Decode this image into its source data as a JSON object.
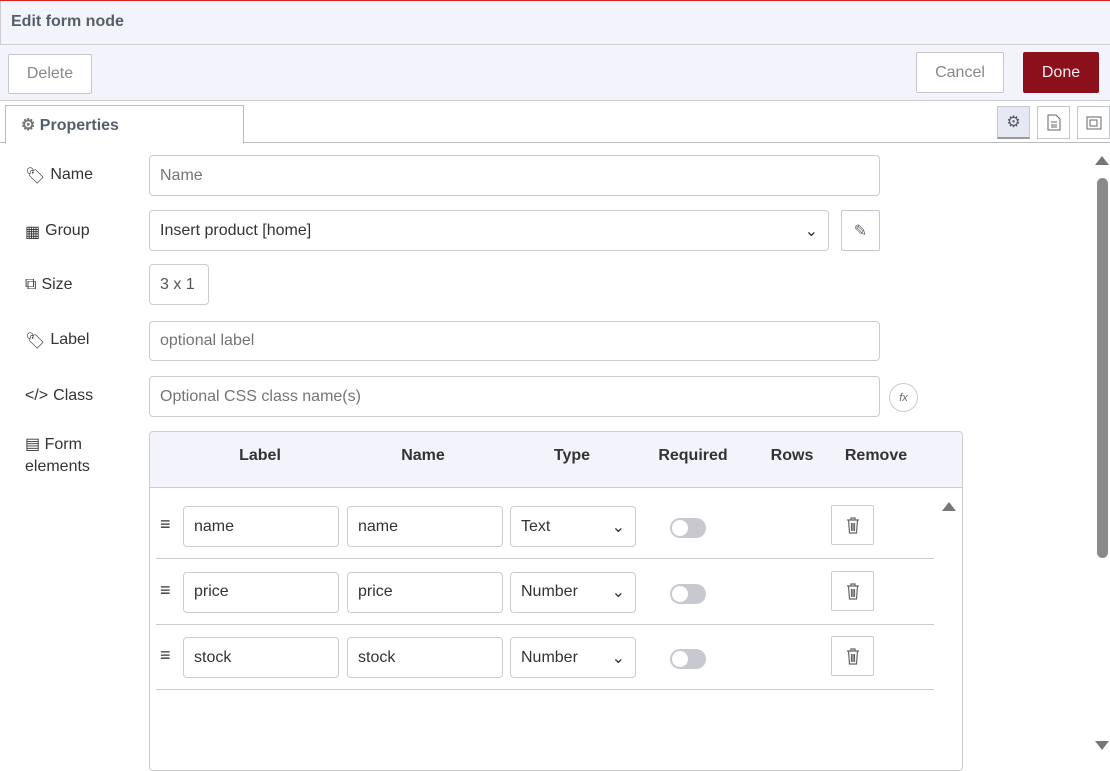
{
  "title": "Edit form node",
  "toolbar": {
    "delete": "Delete",
    "cancel": "Cancel",
    "done": "Done"
  },
  "colors": {
    "accent": "#8c101c",
    "header_bg": "#f3f3fb"
  },
  "tab": {
    "label": "Properties"
  },
  "fields": {
    "name": {
      "label": "Name",
      "placeholder": "Name"
    },
    "group": {
      "label": "Group",
      "value": "Insert product [home]"
    },
    "size": {
      "label": "Size",
      "value": "3 x 1"
    },
    "label": {
      "label": "Label",
      "placeholder": "optional label"
    },
    "class": {
      "label": "Class",
      "placeholder": "Optional CSS class name(s)"
    },
    "form_elements": {
      "label1": "Form",
      "label2": "elements"
    }
  },
  "table": {
    "headers": [
      "Label",
      "Name",
      "Type",
      "Required",
      "Rows",
      "Remove"
    ],
    "rows": [
      {
        "label": "name",
        "name": "name",
        "type": "Text",
        "required": false
      },
      {
        "label": "price",
        "name": "price",
        "type": "Number",
        "required": false
      },
      {
        "label": "stock",
        "name": "stock",
        "type": "Number",
        "required": false
      }
    ]
  }
}
